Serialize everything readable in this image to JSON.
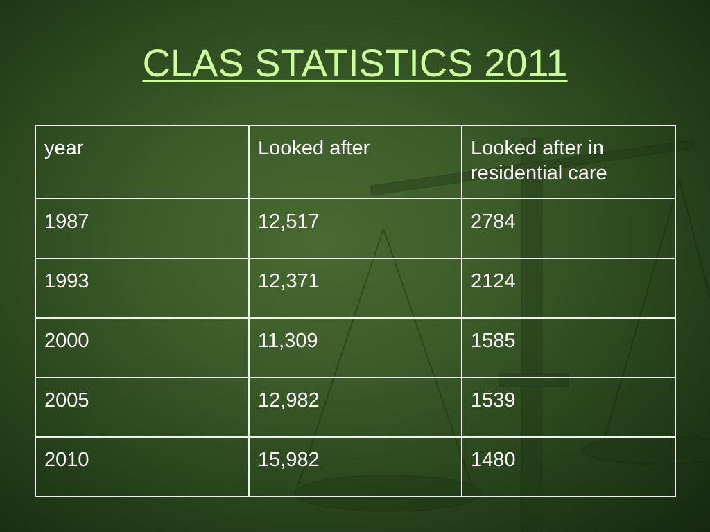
{
  "title": "CLAS STATISTICS 2011",
  "table": {
    "header": [
      "year",
      "Looked after",
      "Looked after in residential care"
    ],
    "rows": [
      [
        "1987",
        "12,517",
        "2784"
      ],
      [
        "1993",
        "12,371",
        "2124"
      ],
      [
        "2000",
        "11,309",
        "1585"
      ],
      [
        "2005",
        "12,982",
        "1539"
      ],
      [
        "2010",
        "15,982",
        "1480"
      ]
    ]
  }
}
